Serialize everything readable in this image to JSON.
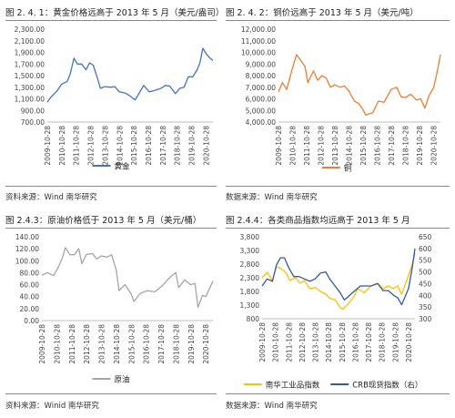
{
  "panels": [
    {
      "title": "图 2. 4. 1：黄金价格远高于 2013 年 5 月（美元/盎司）",
      "source": "资料来源：Wind 南华研究",
      "chart_data": {
        "type": "line",
        "x_ticks": [
          "2009-10-28",
          "2010-10-28",
          "2011-10-28",
          "2012-10-28",
          "2013-10-28",
          "2014-10-28",
          "2015-10-28",
          "2016-10-28",
          "2017-10-28",
          "2018-10-28",
          "2019-10-28",
          "2020-10-28"
        ],
        "y_ticks": [
          "700.00",
          "900.00",
          "1,100.00",
          "1,300.00",
          "1,500.00",
          "1,700.00",
          "1,900.00",
          "2,100.00",
          "2,300.00"
        ],
        "ylim": [
          700,
          2300
        ],
        "grid": false,
        "legend_position": "bottom",
        "series": [
          {
            "name": "黄金",
            "color": "#4472c4",
            "x": [
              2009.82,
              2010.0,
              2010.5,
              2010.8,
              2011.2,
              2011.4,
              2011.67,
              2011.9,
              2012.2,
              2012.5,
              2012.75,
              2013.0,
              2013.3,
              2013.5,
              2013.8,
              2014.2,
              2014.5,
              2014.8,
              2015.2,
              2015.5,
              2015.9,
              2016.2,
              2016.5,
              2016.9,
              2017.2,
              2017.7,
              2018.0,
              2018.3,
              2018.7,
              2019.0,
              2019.3,
              2019.6,
              2019.9,
              2020.2,
              2020.4,
              2020.6,
              2020.82,
              2021.1,
              2021.3
            ],
            "y": [
              1040,
              1110,
              1240,
              1350,
              1400,
              1520,
              1800,
              1700,
              1700,
              1600,
              1720,
              1680,
              1450,
              1280,
              1310,
              1300,
              1310,
              1220,
              1200,
              1160,
              1080,
              1200,
              1330,
              1220,
              1240,
              1280,
              1330,
              1320,
              1190,
              1280,
              1300,
              1480,
              1480,
              1600,
              1720,
              1970,
              1880,
              1800,
              1760
            ]
          }
        ]
      }
    },
    {
      "title": "图 2. 4. 2：铜价远高于 2013 年 5 月（美元/吨）",
      "source": "数据来源：Wind 南华研究",
      "chart_data": {
        "type": "line",
        "x_ticks": [
          "2009-10-28",
          "2010-10-28",
          "2011-10-28",
          "2012-10-28",
          "2013-10-28",
          "2014-10-28",
          "2015-10-28",
          "2016-10-28",
          "2017-10-28",
          "2018-10-28",
          "2019-10-28",
          "2020-10-28"
        ],
        "y_ticks": [
          "4,000.00",
          "5,000.00",
          "6,000.00",
          "7,000.00",
          "8,000.00",
          "9,000.00",
          "10,000.00",
          "11,000.00",
          "12,000.00"
        ],
        "ylim": [
          4000,
          12000
        ],
        "grid": false,
        "legend_position": "bottom",
        "series": [
          {
            "name": "铜",
            "color": "#ed7d31",
            "x": [
              2009.82,
              2010.1,
              2010.4,
              2010.8,
              2011.1,
              2011.4,
              2011.7,
              2011.9,
              2012.3,
              2012.6,
              2012.9,
              2013.2,
              2013.5,
              2013.8,
              2014.2,
              2014.5,
              2014.8,
              2015.2,
              2015.5,
              2015.8,
              2016.0,
              2016.5,
              2016.9,
              2017.3,
              2017.8,
              2018.2,
              2018.5,
              2018.8,
              2019.2,
              2019.6,
              2019.9,
              2020.2,
              2020.5,
              2020.82,
              2021.1,
              2021.3
            ],
            "y": [
              6600,
              7400,
              6800,
              8600,
              9800,
              9300,
              8800,
              7400,
              8400,
              7600,
              8000,
              7800,
              7000,
              7200,
              7000,
              7100,
              6700,
              5800,
              5600,
              5100,
              4600,
              4800,
              5800,
              5700,
              6800,
              7000,
              6200,
              6100,
              6400,
              5900,
              6000,
              5200,
              6300,
              7000,
              8500,
              9800
            ]
          }
        ]
      }
    },
    {
      "title": "图 2.4.3：原油价格低于 2013 年 5 月（美元/桶）",
      "source": "资料来源：Winid 南华研究",
      "chart_data": {
        "type": "line",
        "x_ticks": [
          "2009-10-28",
          "2010-10-28",
          "2011-10-28",
          "2012-10-28",
          "2013-10-28",
          "2014-10-28",
          "2015-10-28",
          "2016-10-28",
          "2017-10-28",
          "2018-10-28",
          "2019-10-28",
          "2020-10-28"
        ],
        "y_ticks": [
          "0.00",
          "20.00",
          "40.00",
          "60.00",
          "80.00",
          "100.00",
          "120.00",
          "140.00"
        ],
        "ylim": [
          0,
          140
        ],
        "grid": false,
        "legend_position": "bottom",
        "series": [
          {
            "name": "原油",
            "color": "#a5a5a5",
            "x": [
              2009.82,
              2010.2,
              2010.6,
              2010.9,
              2011.2,
              2011.4,
              2011.7,
              2012.0,
              2012.3,
              2012.5,
              2012.8,
              2013.2,
              2013.5,
              2013.8,
              2014.2,
              2014.5,
              2014.8,
              2015.0,
              2015.4,
              2015.8,
              2016.0,
              2016.4,
              2016.9,
              2017.4,
              2017.9,
              2018.4,
              2018.8,
              2019.0,
              2019.4,
              2019.8,
              2020.1,
              2020.3,
              2020.6,
              2020.82,
              2021.1,
              2021.3
            ],
            "y": [
              76,
              80,
              75,
              88,
              105,
              122,
              110,
              110,
              120,
              95,
              110,
              112,
              103,
              108,
              106,
              110,
              85,
              50,
              60,
              45,
              32,
              45,
              50,
              48,
              58,
              72,
              80,
              55,
              68,
              60,
              62,
              22,
              42,
              40,
              55,
              66
            ]
          }
        ]
      }
    },
    {
      "title": "图 2.4.4：各类商品指数均远高于 2013 年 5 月",
      "source": "数据来源：Wind 南华研究",
      "chart_data": {
        "type": "line",
        "x_ticks": [
          "2009-10-28",
          "2010-10-28",
          "2011-10-28",
          "2012-10-28",
          "2013-10-28",
          "2014-10-28",
          "2015-10-28",
          "2016-10-28",
          "2017-10-28",
          "2018-10-28",
          "2019-10-28",
          "2020-10-28"
        ],
        "y_ticks": [
          "800",
          "1,300",
          "1,800",
          "2,300",
          "2,800",
          "3,300",
          "3,800"
        ],
        "ylim": [
          800,
          3800
        ],
        "y2_ticks": [
          "300",
          "350",
          "400",
          "450",
          "500",
          "550",
          "600",
          "650"
        ],
        "y2lim": [
          300,
          650
        ],
        "grid": false,
        "legend_position": "bottom",
        "series": [
          {
            "name": "南华工业品指数",
            "color": "#ffc000",
            "axis": "left",
            "x": [
              2009.82,
              2010.2,
              2010.6,
              2010.9,
              2011.2,
              2011.6,
              2011.9,
              2012.3,
              2012.7,
              2013.0,
              2013.4,
              2013.8,
              2014.2,
              2014.6,
              2014.9,
              2015.3,
              2015.7,
              2015.9,
              2016.3,
              2016.7,
              2017.0,
              2017.5,
              2018.0,
              2018.5,
              2018.9,
              2019.3,
              2019.7,
              2020.0,
              2020.3,
              2020.6,
              2020.82,
              2021.1,
              2021.3
            ],
            "y": [
              2300,
              2500,
              2200,
              2700,
              2650,
              2500,
              2200,
              2300,
              2100,
              2200,
              1900,
              1950,
              1800,
              1700,
              1550,
              1500,
              1200,
              1150,
              1350,
              1600,
              1900,
              1750,
              2000,
              2100,
              1900,
              2000,
              1900,
              2000,
              1700,
              2100,
              2400,
              2800,
              3200
            ]
          },
          {
            "name": "CRB现货指数（右）",
            "color": "#2e5aa8",
            "axis": "right",
            "x": [
              2009.82,
              2010.2,
              2010.6,
              2010.9,
              2011.2,
              2011.5,
              2011.8,
              2012.2,
              2012.6,
              2013.0,
              2013.4,
              2013.8,
              2014.2,
              2014.6,
              2014.9,
              2015.3,
              2015.7,
              2016.0,
              2016.4,
              2016.8,
              2017.2,
              2017.6,
              2018.0,
              2018.5,
              2018.9,
              2019.3,
              2019.7,
              2020.0,
              2020.3,
              2020.6,
              2020.82,
              2021.1,
              2021.3
            ],
            "y": [
              440,
              470,
              460,
              530,
              560,
              560,
              520,
              480,
              480,
              470,
              460,
              470,
              495,
              500,
              470,
              440,
              410,
              380,
              400,
              420,
              440,
              440,
              440,
              450,
              420,
              420,
              400,
              390,
              360,
              400,
              430,
              520,
              600
            ]
          }
        ]
      }
    }
  ]
}
